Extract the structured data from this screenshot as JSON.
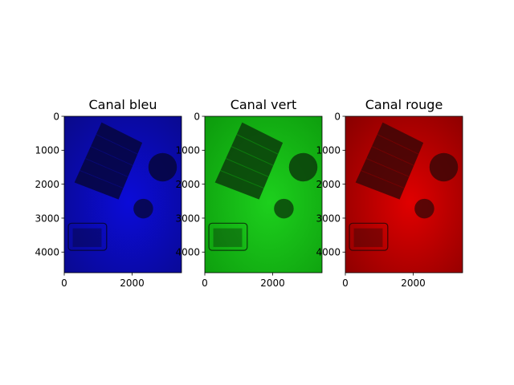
{
  "chart_data": [
    {
      "type": "heatmap",
      "title": "Canal bleu",
      "channel_color": "#0000ff",
      "base_dark": "#0a0a8c",
      "base_light": "#0b0bd8",
      "shadow": "#06063c",
      "xlim": [
        0,
        3456
      ],
      "ylim": [
        4608,
        0
      ],
      "xticks": [
        {
          "value": 0,
          "label": "0"
        },
        {
          "value": 2000,
          "label": "2000"
        }
      ],
      "yticks": [
        {
          "value": 0,
          "label": "0"
        },
        {
          "value": 1000,
          "label": "1000"
        },
        {
          "value": 2000,
          "label": "2000"
        },
        {
          "value": 3000,
          "label": "3000"
        },
        {
          "value": 4000,
          "label": "4000"
        }
      ]
    },
    {
      "type": "heatmap",
      "title": "Canal vert",
      "channel_color": "#00ff00",
      "base_dark": "#0d9c0d",
      "base_light": "#1dd01d",
      "shadow": "#0a3c0a",
      "xlim": [
        0,
        3456
      ],
      "ylim": [
        4608,
        0
      ],
      "xticks": [
        {
          "value": 0,
          "label": "0"
        },
        {
          "value": 2000,
          "label": "2000"
        }
      ],
      "yticks": [
        {
          "value": 0,
          "label": "0"
        },
        {
          "value": 1000,
          "label": "1000"
        },
        {
          "value": 2000,
          "label": "2000"
        },
        {
          "value": 3000,
          "label": "3000"
        },
        {
          "value": 4000,
          "label": "4000"
        }
      ]
    },
    {
      "type": "heatmap",
      "title": "Canal rouge",
      "channel_color": "#ff0000",
      "base_dark": "#8a0000",
      "base_light": "#e00000",
      "shadow": "#3c0606",
      "xlim": [
        0,
        3456
      ],
      "ylim": [
        4608,
        0
      ],
      "xticks": [
        {
          "value": 0,
          "label": "0"
        },
        {
          "value": 2000,
          "label": "2000"
        }
      ],
      "yticks": [
        {
          "value": 0,
          "label": "0"
        },
        {
          "value": 1000,
          "label": "1000"
        },
        {
          "value": 2000,
          "label": "2000"
        },
        {
          "value": 3000,
          "label": "3000"
        },
        {
          "value": 4000,
          "label": "4000"
        }
      ]
    }
  ]
}
